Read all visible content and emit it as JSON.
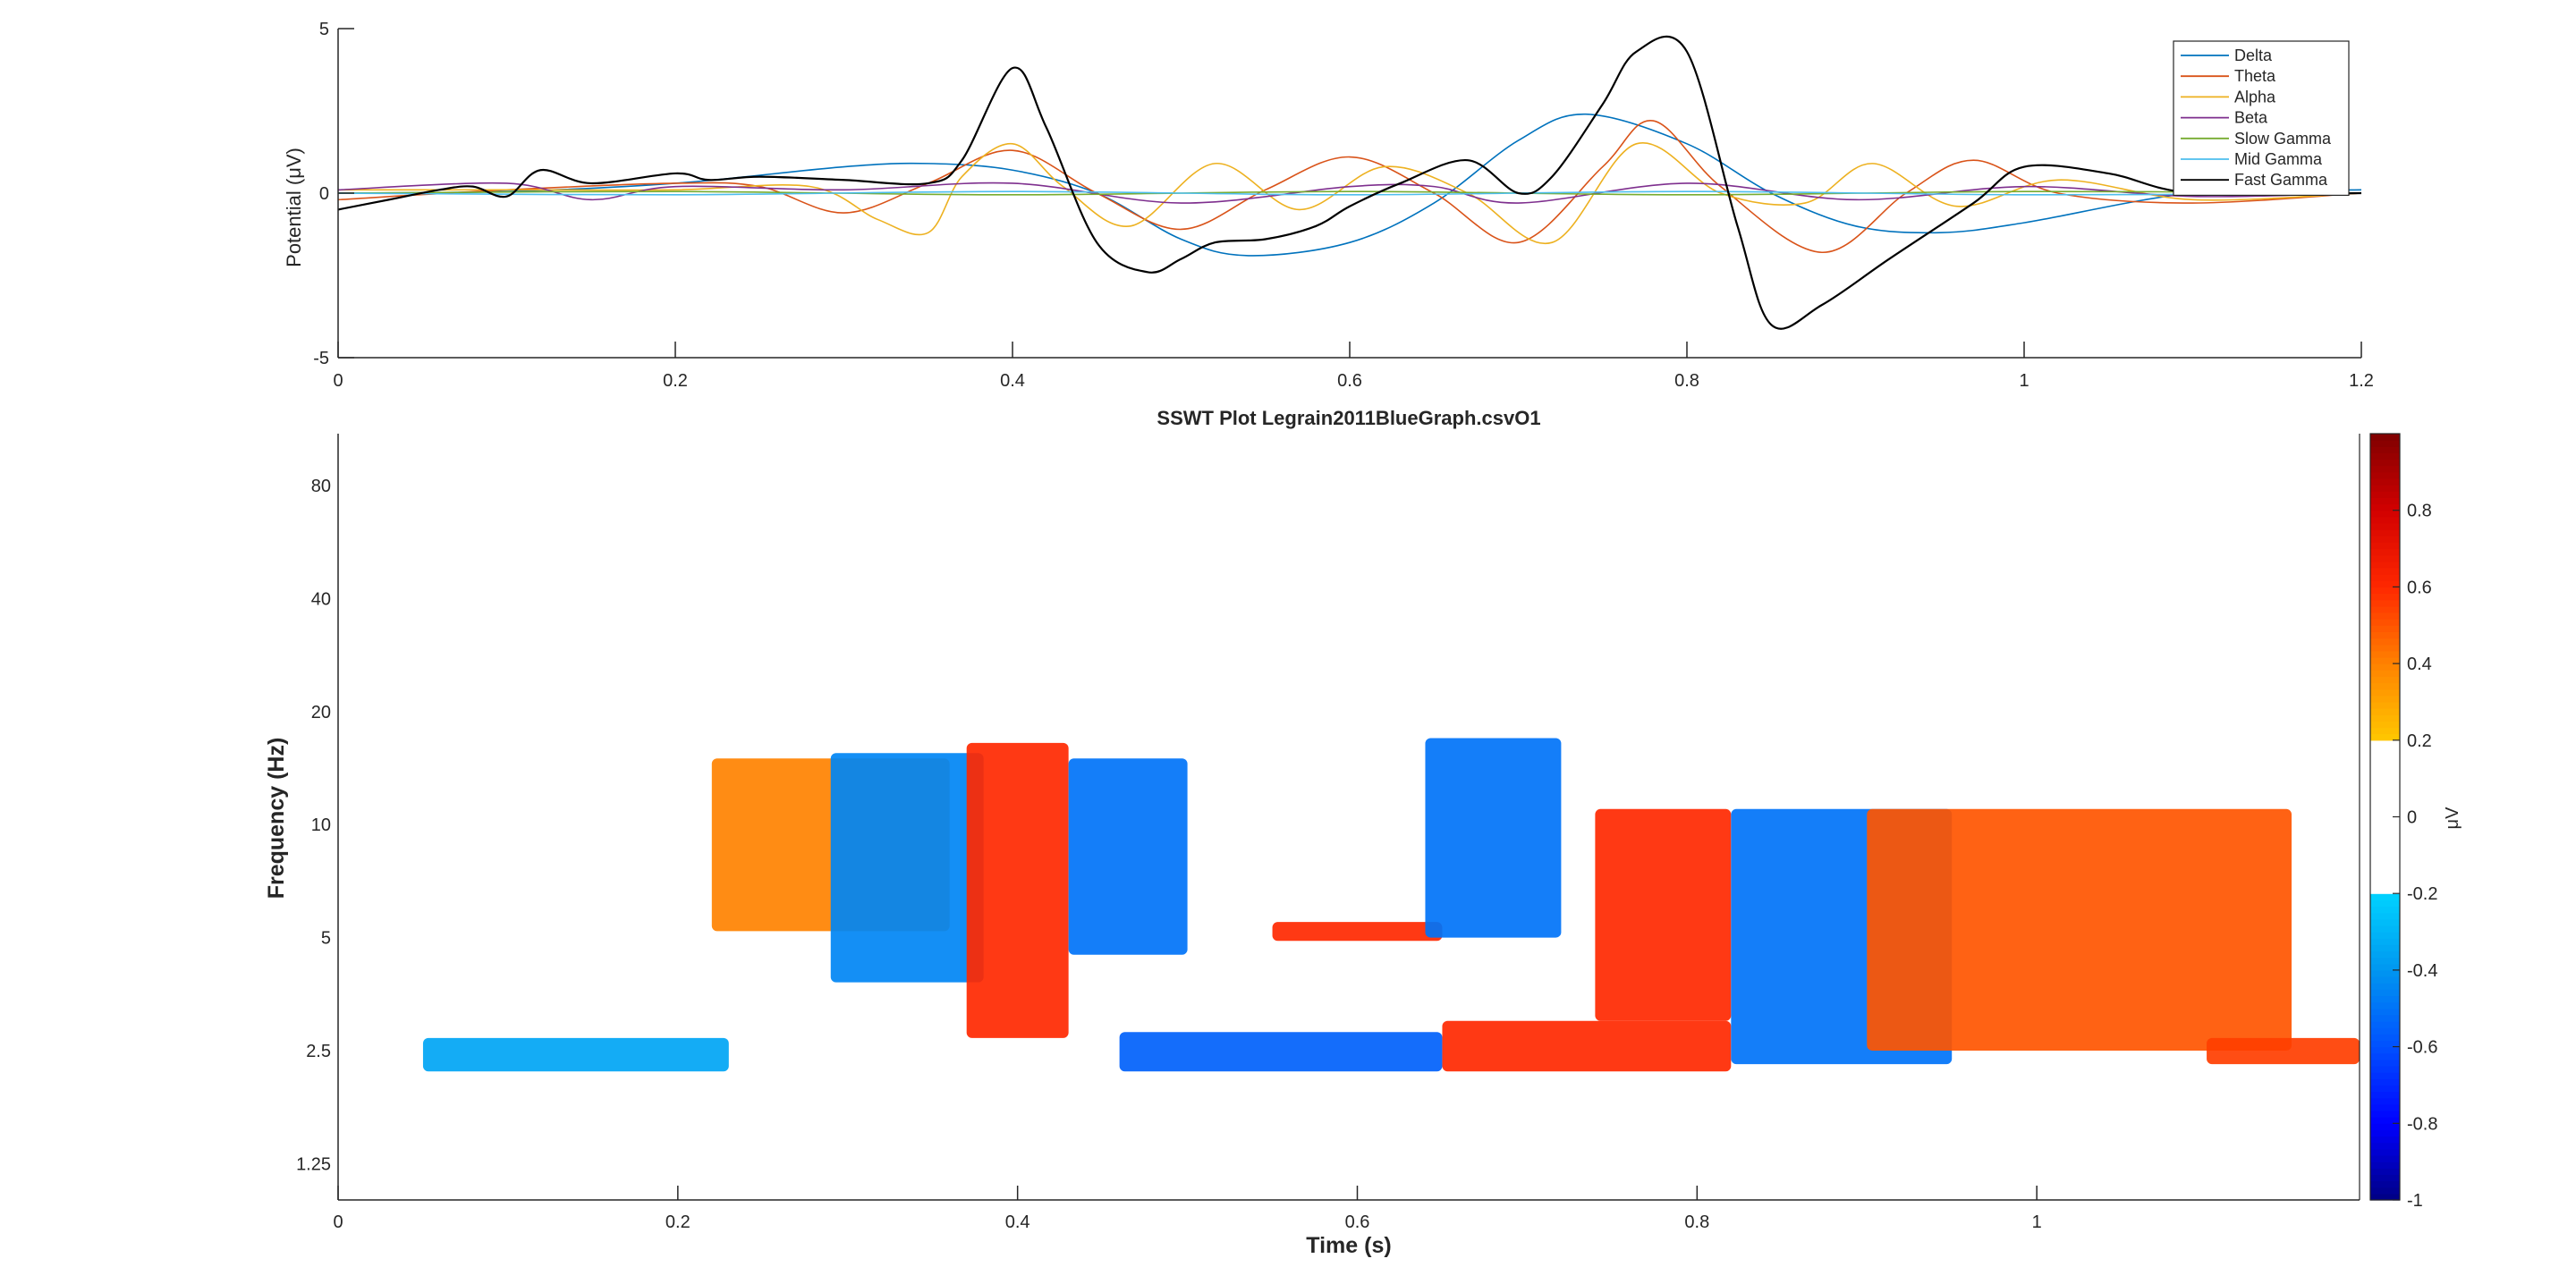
{
  "window": {
    "background": "#ffffff"
  },
  "chart_data": [
    {
      "type": "line",
      "title": "",
      "xlabel": "",
      "ylabel": "Potential (μV)",
      "xlim": [
        0,
        1.2
      ],
      "ylim": [
        -5,
        5
      ],
      "x_ticks": [
        "0",
        "0.2",
        "0.4",
        "0.6",
        "0.8",
        "1",
        "1.2"
      ],
      "y_ticks": [
        "-5",
        "0",
        "5"
      ],
      "grid": false,
      "legend_position": "top-right",
      "series": [
        {
          "name": "Delta",
          "color": "#0072BD",
          "x": [
            0,
            0.1,
            0.2,
            0.3,
            0.35,
            0.4,
            0.45,
            0.5,
            0.54,
            0.6,
            0.65,
            0.7,
            0.74,
            0.8,
            0.85,
            0.9,
            0.95,
            1.0,
            1.1,
            1.2
          ],
          "values": [
            0,
            0.05,
            0.3,
            0.8,
            0.9,
            0.7,
            0.0,
            -1.4,
            -1.9,
            -1.5,
            -0.3,
            1.6,
            2.4,
            1.5,
            0.0,
            -1.0,
            -1.2,
            -0.9,
            0.0,
            0.1
          ]
        },
        {
          "name": "Theta",
          "color": "#D95319",
          "x": [
            0,
            0.1,
            0.2,
            0.25,
            0.3,
            0.35,
            0.4,
            0.45,
            0.5,
            0.55,
            0.6,
            0.65,
            0.7,
            0.75,
            0.78,
            0.82,
            0.88,
            0.93,
            0.97,
            1.02,
            1.1,
            1.2
          ],
          "values": [
            -0.2,
            0.1,
            0.3,
            0.2,
            -0.6,
            0.3,
            1.3,
            0.0,
            -1.1,
            0.1,
            1.1,
            0.0,
            -1.5,
            0.8,
            2.2,
            0.2,
            -1.8,
            0.0,
            1.0,
            0.0,
            -0.3,
            0.0
          ]
        },
        {
          "name": "Alpha",
          "color": "#EDB120",
          "x": [
            0,
            0.1,
            0.2,
            0.28,
            0.32,
            0.35,
            0.37,
            0.4,
            0.43,
            0.47,
            0.52,
            0.57,
            0.62,
            0.67,
            0.72,
            0.77,
            0.82,
            0.87,
            0.91,
            0.96,
            1.02,
            1.1,
            1.2
          ],
          "values": [
            0.1,
            0.1,
            0.1,
            0.2,
            -0.8,
            -1.2,
            0.5,
            1.5,
            0.2,
            -1.0,
            0.9,
            -0.5,
            0.8,
            0.0,
            -1.5,
            1.5,
            0.0,
            -0.3,
            0.9,
            -0.4,
            0.4,
            -0.2,
            0.0
          ]
        },
        {
          "name": "Beta",
          "color": "#7E2F8E",
          "x": [
            0,
            0.1,
            0.15,
            0.2,
            0.3,
            0.4,
            0.5,
            0.6,
            0.65,
            0.7,
            0.8,
            0.9,
            1.0,
            1.1,
            1.2
          ],
          "values": [
            0.1,
            0.3,
            -0.2,
            0.2,
            0.1,
            0.3,
            -0.3,
            0.2,
            0.2,
            -0.3,
            0.3,
            -0.2,
            0.2,
            -0.1,
            0.0
          ]
        },
        {
          "name": "Slow Gamma",
          "color": "#77AC30",
          "x": [
            0,
            0.2,
            0.4,
            0.6,
            0.8,
            1.0,
            1.2
          ],
          "values": [
            0.0,
            0.05,
            -0.05,
            0.05,
            -0.05,
            0.05,
            0.0
          ]
        },
        {
          "name": "Mid Gamma",
          "color": "#4DBEEE",
          "x": [
            0,
            0.2,
            0.4,
            0.6,
            0.8,
            1.0,
            1.2
          ],
          "values": [
            0.0,
            -0.05,
            0.05,
            -0.05,
            0.05,
            -0.05,
            0.0
          ]
        },
        {
          "name": "Fast Gamma",
          "color": "#000000",
          "x": [
            0,
            0.03,
            0.06,
            0.08,
            0.1,
            0.12,
            0.15,
            0.2,
            0.22,
            0.25,
            0.3,
            0.35,
            0.37,
            0.4,
            0.42,
            0.45,
            0.48,
            0.5,
            0.52,
            0.55,
            0.58,
            0.6,
            0.63,
            0.67,
            0.7,
            0.72,
            0.75,
            0.77,
            0.8,
            0.83,
            0.85,
            0.88,
            0.92,
            0.97,
            1.0,
            1.05,
            1.1,
            1.2
          ],
          "values": [
            -0.5,
            -0.2,
            0.1,
            0.2,
            -0.1,
            0.7,
            0.3,
            0.6,
            0.4,
            0.5,
            0.4,
            0.3,
            1.0,
            3.8,
            2.0,
            -1.5,
            -2.4,
            -2.0,
            -1.5,
            -1.4,
            -1.0,
            -0.4,
            0.3,
            1.0,
            0.0,
            0.5,
            2.7,
            4.3,
            4.3,
            -1.0,
            -4.0,
            -3.4,
            -2.0,
            -0.3,
            0.8,
            0.6,
            0.0,
            0.0
          ]
        }
      ]
    },
    {
      "type": "heatmap",
      "title": "SSWT Plot Legrain2011BlueGraph.csvO1",
      "xlabel": "Time (s)",
      "ylabel": "Frequency (Hz)",
      "xlim": [
        0,
        1.19
      ],
      "ylim": [
        1,
        110
      ],
      "y_scale": "log",
      "x_ticks": [
        "0",
        "0.2",
        "0.4",
        "0.6",
        "0.8",
        "1"
      ],
      "y_ticks": [
        "1.25",
        "2.5",
        "5",
        "10",
        "20",
        "40",
        "80"
      ],
      "colorbar": {
        "label": "μV",
        "range": [
          -1,
          1
        ],
        "ticks": [
          "0.8",
          "0.6",
          "0.4",
          "0.2",
          "0",
          "-0.2",
          "-0.4",
          "-0.6",
          "-0.8",
          "-1"
        ],
        "blank_range": [
          -0.2,
          0.2
        ]
      },
      "bands": [
        {
          "x": [
            0.05,
            0.23
          ],
          "f": [
            2.2,
            2.7
          ],
          "value": -0.35
        },
        {
          "x": [
            0.22,
            0.36
          ],
          "f": [
            5.2,
            15
          ],
          "value": 0.4
        },
        {
          "x": [
            0.29,
            0.38
          ],
          "f": [
            3.8,
            15.5
          ],
          "value": -0.45
        },
        {
          "x": [
            0.37,
            0.43
          ],
          "f": [
            2.7,
            16.5
          ],
          "value": 0.6
        },
        {
          "x": [
            0.43,
            0.5
          ],
          "f": [
            4.5,
            15
          ],
          "value": -0.5
        },
        {
          "x": [
            0.46,
            0.65
          ],
          "f": [
            2.2,
            2.8
          ],
          "value": -0.55
        },
        {
          "x": [
            0.55,
            0.65
          ],
          "f": [
            4.9,
            5.5
          ],
          "value": 0.6
        },
        {
          "x": [
            0.64,
            0.72
          ],
          "f": [
            5,
            17
          ],
          "value": -0.5
        },
        {
          "x": [
            0.65,
            0.82
          ],
          "f": [
            2.2,
            3.0
          ],
          "value": 0.6
        },
        {
          "x": [
            0.74,
            0.82
          ],
          "f": [
            3.0,
            11
          ],
          "value": 0.6
        },
        {
          "x": [
            0.82,
            0.95
          ],
          "f": [
            2.3,
            11
          ],
          "value": -0.5
        },
        {
          "x": [
            0.9,
            1.15
          ],
          "f": [
            2.5,
            11
          ],
          "value": 0.5
        },
        {
          "x": [
            1.1,
            1.19
          ],
          "f": [
            2.3,
            2.7
          ],
          "value": 0.55
        }
      ]
    }
  ]
}
